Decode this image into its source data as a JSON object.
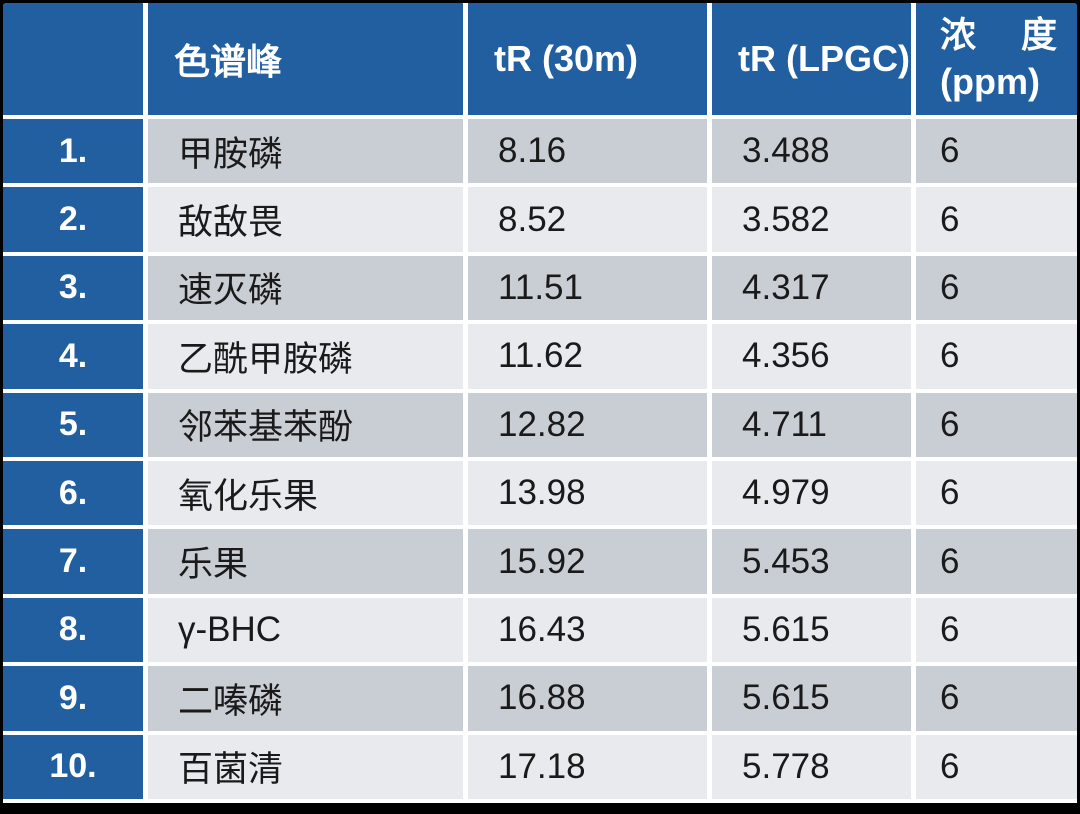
{
  "table": {
    "header": {
      "corner": "",
      "peak": "色谱峰",
      "tr_30m": "tR (30m)",
      "tr_lpgc": "tR (LPGC)",
      "conc_line1": "浓 度",
      "conc_line2": "(ppm)"
    },
    "rows": [
      {
        "num": "1.",
        "name": "甲胺磷",
        "tr30": "8.16",
        "trlpgc": "3.488",
        "conc": "6"
      },
      {
        "num": "2.",
        "name": "敌敌畏",
        "tr30": "8.52",
        "trlpgc": "3.582",
        "conc": "6"
      },
      {
        "num": "3.",
        "name": "速灭磷",
        "tr30": "11.51",
        "trlpgc": "4.317",
        "conc": "6"
      },
      {
        "num": "4.",
        "name": "乙酰甲胺磷",
        "tr30": "11.62",
        "trlpgc": "4.356",
        "conc": "6"
      },
      {
        "num": "5.",
        "name": "邻苯基苯酚",
        "tr30": "12.82",
        "trlpgc": "4.711",
        "conc": "6"
      },
      {
        "num": "6.",
        "name": "氧化乐果",
        "tr30": "13.98",
        "trlpgc": "4.979",
        "conc": "6"
      },
      {
        "num": "7.",
        "name": "乐果",
        "tr30": "15.92",
        "trlpgc": "5.453",
        "conc": "6"
      },
      {
        "num": "8.",
        "name": "γ-BHC",
        "tr30": "16.43",
        "trlpgc": "5.615",
        "conc": "6"
      },
      {
        "num": "9.",
        "name": "二嗪磷",
        "tr30": "16.88",
        "trlpgc": "5.615",
        "conc": "6"
      },
      {
        "num": "10.",
        "name": "百菌清",
        "tr30": "17.18",
        "trlpgc": "5.778",
        "conc": "6"
      }
    ]
  },
  "colors": {
    "frame_black": "#000000",
    "header_blue": "#215FA0",
    "band_dark": "#C9CDD4",
    "band_light": "#E8EAEE",
    "separator_white": "#FFFFFF",
    "text_dark": "#1A1A1A",
    "text_light": "#FFFFFF"
  }
}
